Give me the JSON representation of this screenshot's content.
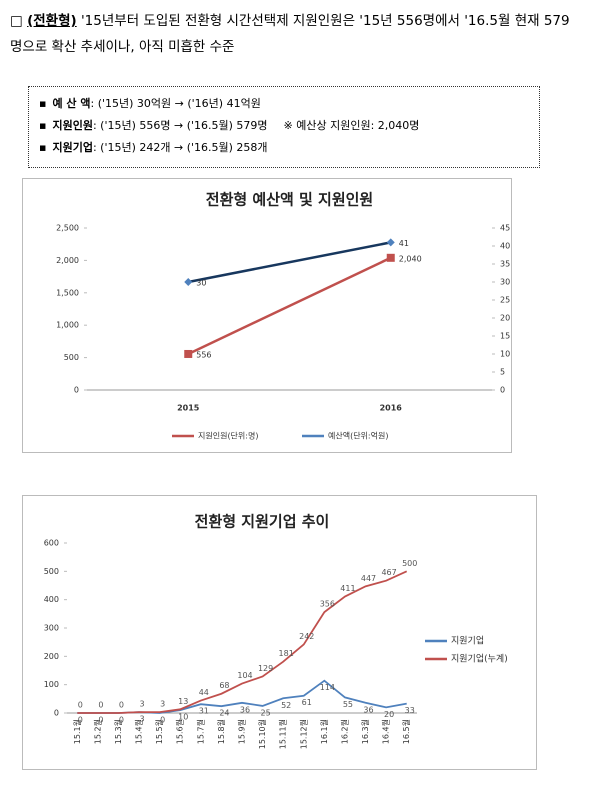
{
  "intro": {
    "marker": "□",
    "label": "(전환형)",
    "text": "'15년부터 도입된 전환형 시간선택제 지원인원은 '15년 556명에서 '16.5월 현재 579명으로 확산 추세이나, 아직 미흡한 수준"
  },
  "box": {
    "lines": [
      {
        "label": "예 산 액",
        "text": ": ('15년) 30억원 → ('16년) 41억원"
      },
      {
        "label": "지원인원",
        "text": ": ('15년) 556명 → ('16.5월) 579명",
        "note": "※ 예산상 지원인원: 2,040명"
      },
      {
        "label": "지원기업",
        "text": ": ('15년) 242개 → ('16.5월) 258개"
      }
    ]
  },
  "chart_data": [
    {
      "type": "line",
      "title": "전환형 예산액 및 지원인원",
      "categories": [
        "2015",
        "2016"
      ],
      "series": [
        {
          "name": "지원인원(단위:명)",
          "color": "#c0504d",
          "marker": "square",
          "values": [
            556,
            2040
          ],
          "value_labels": [
            "556",
            "2,040"
          ]
        },
        {
          "name": "예산액(단위:억원)",
          "color": "#4f81bd",
          "marker": "diamond",
          "axis": "y2",
          "values": [
            30,
            41
          ]
        }
      ],
      "ylim": [
        0,
        2500
      ],
      "yticks": [
        0,
        500,
        {
          "value": 1000,
          "label": "1,000"
        },
        {
          "value": 1500,
          "label": "1,500"
        },
        {
          "value": 2000,
          "label": "2,000"
        },
        {
          "value": 2500,
          "label": "2,500"
        }
      ],
      "y2lim": [
        0,
        45
      ],
      "y2ticks": [
        0,
        5,
        10,
        15,
        20,
        25,
        30,
        35,
        40,
        45
      ],
      "grid": false,
      "legend": "bottom"
    },
    {
      "type": "line",
      "title": "전환형 지원기업 추이",
      "categories": [
        "15.1월",
        "15.2월",
        "15.3월",
        "15.4월",
        "15.5월",
        "15.6월",
        "15.7월",
        "15.8월",
        "15.9월",
        "15.10월",
        "15.11월",
        "15.12월",
        "16.1월",
        "16.2월",
        "16.3월",
        "16.4월",
        "16.5월"
      ],
      "series": [
        {
          "name": "지원기업",
          "color": "#4f81bd",
          "values": [
            0,
            0,
            0,
            3,
            0,
            10,
            31,
            24,
            36,
            25,
            52,
            61,
            114,
            55,
            36,
            20,
            33
          ]
        },
        {
          "name": "지원기업(누계)",
          "color": "#c0504d",
          "values": [
            0,
            0,
            0,
            3,
            3,
            13,
            44,
            68,
            104,
            129,
            181,
            242,
            356,
            411,
            447,
            467,
            500
          ]
        }
      ],
      "ylim": [
        0,
        600
      ],
      "yticks": [
        0,
        100,
        200,
        300,
        400,
        500,
        600
      ],
      "grid": false,
      "legend": "right"
    }
  ]
}
